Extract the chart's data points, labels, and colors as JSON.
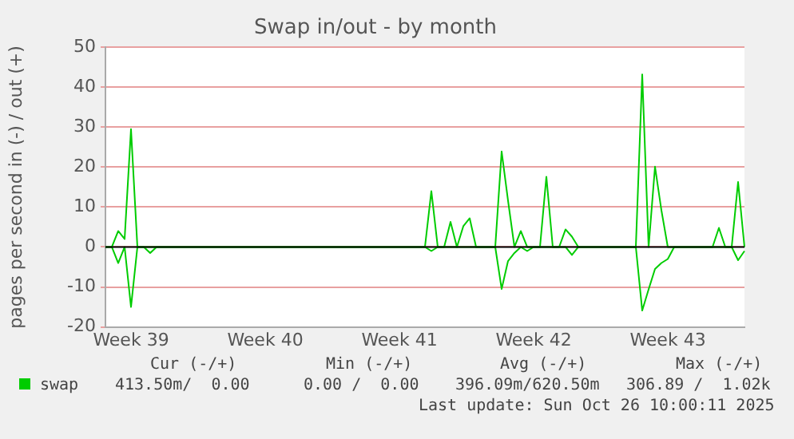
{
  "chart_data": {
    "type": "line",
    "title": "Swap in/out - by month",
    "ylabel": "pages per second in (-) / out (+)",
    "categories": [
      null,
      null,
      null,
      null,
      "Week 39",
      null,
      null,
      null,
      null,
      null,
      null,
      null,
      null,
      null,
      null,
      null,
      null,
      null,
      null,
      null,
      null,
      null,
      null,
      null,
      null,
      "Week 40",
      null,
      null,
      null,
      null,
      null,
      null,
      null,
      null,
      null,
      null,
      null,
      null,
      null,
      null,
      null,
      null,
      null,
      null,
      null,
      null,
      "Week 41",
      null,
      null,
      null,
      null,
      null,
      null,
      null,
      null,
      null,
      null,
      null,
      null,
      null,
      null,
      null,
      null,
      null,
      null,
      null,
      null,
      "Week 42",
      null,
      null,
      null,
      null,
      null,
      null,
      null,
      null,
      null,
      null,
      null,
      null,
      null,
      null,
      null,
      null,
      null,
      null,
      null,
      null,
      "Week 43",
      null,
      null,
      null,
      null,
      null,
      null,
      null,
      null,
      null,
      null,
      null,
      null
    ],
    "series": [
      {
        "name": "swap",
        "color": "#00cc00",
        "values": [
          0,
          0,
          4,
          2,
          29.5,
          0,
          0,
          0,
          0,
          0,
          0,
          0,
          0,
          0,
          0,
          0,
          0,
          0,
          0,
          0,
          0,
          0,
          0,
          0,
          0,
          0,
          0,
          0,
          0,
          0,
          0,
          0,
          0,
          0,
          0,
          0,
          0,
          0,
          0,
          0,
          0,
          0,
          0,
          0,
          0,
          0,
          0,
          0,
          0,
          0,
          0,
          14,
          0,
          0,
          6.3,
          0,
          5.2,
          7.2,
          0,
          0,
          0,
          0,
          23.9,
          11.6,
          0,
          4,
          0,
          0,
          0,
          17.6,
          0,
          0,
          4.4,
          2.6,
          0,
          0,
          0,
          0,
          0,
          0,
          0,
          0,
          0,
          0,
          43.2,
          0,
          20.1,
          9.2,
          0,
          0,
          0,
          0,
          0,
          0,
          0,
          0,
          4.8,
          0,
          0,
          16.3,
          0
        ]
      },
      {
        "color": "#00cc00",
        "values": [
          0,
          0,
          -4,
          0,
          -15,
          0,
          0,
          -1.5,
          0,
          0,
          0,
          0,
          0,
          0,
          0,
          0,
          0,
          0,
          0,
          0,
          0,
          0,
          0,
          0,
          0,
          0,
          0,
          0,
          0,
          0,
          0,
          0,
          0,
          0,
          0,
          0,
          0,
          0,
          0,
          0,
          0,
          0,
          0,
          0,
          0,
          0,
          0,
          0,
          0,
          0,
          0,
          -1,
          0,
          0,
          0,
          0,
          0,
          0,
          0,
          0,
          0,
          0,
          -10.5,
          -3.5,
          -1.5,
          0,
          -1,
          0,
          0,
          0,
          0,
          0,
          0,
          -2,
          0,
          0,
          0,
          0,
          0,
          0,
          0,
          0,
          0,
          0,
          -15.9,
          -10.6,
          -5.5,
          -4,
          -3,
          0,
          0,
          0,
          0,
          0,
          0,
          0,
          0,
          0,
          0,
          -3.3,
          -1
        ]
      }
    ],
    "ylim": [
      -20,
      50
    ],
    "yticks": [
      -20,
      -10,
      0,
      10,
      20,
      30,
      40,
      50
    ],
    "grid": "y",
    "legend": "bottom left",
    "marker": "none",
    "line_style": "solid",
    "ref_lines": [
      {
        "axis": "y",
        "value": 0,
        "color": "#000000"
      }
    ],
    "annotations": [
      "Cur (-/+)",
      "Min (-/+)",
      "Avg (-/+)",
      "Max (-/+)",
      "413.50m/  0.00",
      "0.00 /  0.00",
      "396.09m/620.50m",
      "306.89 /  1.02k",
      "Last update: Sun Oct 26 10:00:11 2025"
    ]
  }
}
